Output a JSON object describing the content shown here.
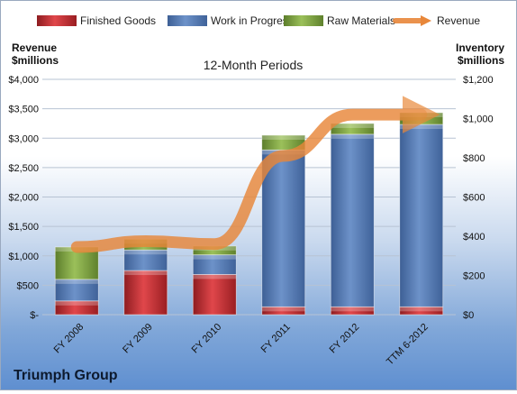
{
  "chart_data": {
    "type": "bar",
    "stacked": true,
    "title": "12-Month Periods",
    "company": "Triumph Group",
    "categories": [
      "FY 2008",
      "FY 2009",
      "FY 2010",
      "FY 2011",
      "FY 2012",
      "TTM 6-2012"
    ],
    "series": [
      {
        "name": "Finished Goods",
        "color": "#c0272d",
        "axis": "inventory",
        "values": [
          70,
          225,
          205,
          40,
          40,
          40
        ]
      },
      {
        "name": "Work in Progress",
        "color": "#4f7bbd",
        "axis": "inventory",
        "values": [
          110,
          105,
          100,
          800,
          880,
          930
        ]
      },
      {
        "name": "Raw Materials",
        "color": "#79a33d",
        "axis": "inventory",
        "values": [
          165,
          55,
          45,
          75,
          55,
          60
        ]
      },
      {
        "name": "Revenue",
        "color": "#e8873a",
        "axis": "revenue",
        "type": "line",
        "values": [
          1150,
          1250,
          1200,
          2700,
          3400,
          3400
        ]
      }
    ],
    "y_left": {
      "label_line1": "Revenue",
      "label_line2": "$millions",
      "range": [
        0,
        4000
      ],
      "ticks": [
        "$4,000",
        "$3,500",
        "$3,000",
        "$2,500",
        "$2,000",
        "$1,500",
        "$1,000",
        "$500",
        "$-"
      ]
    },
    "y_right": {
      "label_line1": "Inventory",
      "label_line2": "$millions",
      "range": [
        0,
        1200
      ],
      "ticks": [
        "$1,200",
        "$1,000",
        "$800",
        "$600",
        "$400",
        "$200",
        "$0"
      ]
    },
    "legend_position": "top"
  }
}
